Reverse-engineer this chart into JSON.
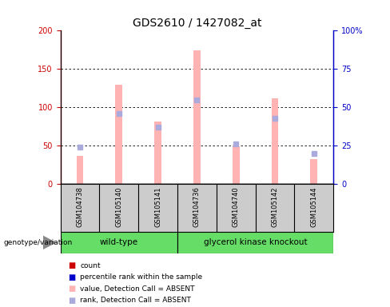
{
  "title": "GDS2610 / 1427082_at",
  "samples": [
    "GSM104738",
    "GSM105140",
    "GSM105141",
    "GSM104736",
    "GSM104740",
    "GSM105142",
    "GSM105144"
  ],
  "bar_values": [
    37,
    130,
    82,
    174,
    49,
    112,
    33
  ],
  "rank_values": [
    24,
    46,
    37,
    55,
    26,
    43,
    20
  ],
  "bar_color": "#ffb3b3",
  "rank_color": "#aaaadd",
  "left_ylim": [
    0,
    200
  ],
  "right_ylim": [
    0,
    100
  ],
  "left_yticks": [
    0,
    50,
    100,
    150,
    200
  ],
  "right_yticks": [
    0,
    25,
    50,
    75,
    100
  ],
  "right_yticklabels": [
    "0",
    "25",
    "50",
    "75",
    "100%"
  ],
  "left_ylabel_color": "#cc0000",
  "right_ylabel_color": "#0000cc",
  "wild_type_indices": [
    0,
    1,
    2
  ],
  "knockout_indices": [
    3,
    4,
    5,
    6
  ],
  "group1_label": "wild-type",
  "group2_label": "glycerol kinase knockout",
  "genotype_label": "genotype/variation",
  "legend_items": [
    {
      "label": "count",
      "color": "#cc0000"
    },
    {
      "label": "percentile rank within the sample",
      "color": "#0000cc"
    },
    {
      "label": "value, Detection Call = ABSENT",
      "color": "#ffb3b3"
    },
    {
      "label": "rank, Detection Call = ABSENT",
      "color": "#aaaadd"
    }
  ],
  "bg_color": "#ffffff",
  "plot_bg_color": "#ffffff",
  "tick_label_area_color": "#cccccc",
  "group_bar_color": "#66dd66",
  "title_fontsize": 10,
  "tick_fontsize": 7,
  "label_fontsize": 7
}
